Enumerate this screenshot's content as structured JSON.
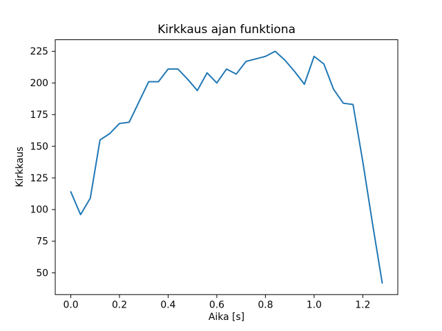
{
  "chart_data": {
    "type": "line",
    "title": "Kirkkaus ajan funktiona",
    "xlabel": "Aika [s]",
    "ylabel": "Kirkkaus",
    "x": [
      0,
      0.04,
      0.08,
      0.12,
      0.16,
      0.2,
      0.24,
      0.28,
      0.32,
      0.36,
      0.4,
      0.44,
      0.48,
      0.52,
      0.56,
      0.6,
      0.64,
      0.68,
      0.72,
      0.76,
      0.8,
      0.84,
      0.88,
      0.92,
      0.96,
      1.0,
      1.04,
      1.08,
      1.12,
      1.16,
      1.2,
      1.24,
      1.28
    ],
    "y": [
      114,
      96,
      109,
      155,
      160,
      168,
      169,
      185,
      201,
      201,
      211,
      211,
      203,
      194,
      208,
      200,
      211,
      207,
      217,
      219,
      221,
      225,
      218,
      209,
      199,
      221,
      215,
      195,
      184,
      183,
      138,
      89,
      42
    ],
    "line_color": "#1f77b4",
    "background_color": "#ffffff",
    "text_color": "#000000",
    "spine_color": "#000000",
    "xlim": [
      -0.064,
      1.344
    ],
    "ylim": [
      32.85,
      234.15
    ],
    "x_tick_values": [
      0.0,
      0.2,
      0.4,
      0.6,
      0.8,
      1.0,
      1.2
    ],
    "x_tick_labels": [
      "0.0",
      "0.2",
      "0.4",
      "0.6",
      "0.8",
      "1.0",
      "1.2"
    ],
    "y_tick_values": [
      50,
      75,
      100,
      125,
      150,
      175,
      200,
      225
    ],
    "y_tick_labels": [
      "50",
      "75",
      "100",
      "125",
      "150",
      "175",
      "200",
      "225"
    ],
    "grid": false,
    "legend": "none"
  }
}
